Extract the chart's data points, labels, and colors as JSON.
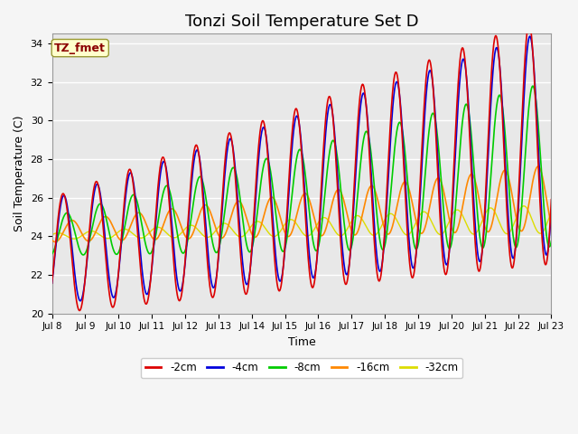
{
  "title": "Tonzi Soil Temperature Set D",
  "xlabel": "Time",
  "ylabel": "Soil Temperature (C)",
  "ylim": [
    20,
    34.5
  ],
  "colors": {
    "-2cm": "#dd0000",
    "-4cm": "#0000dd",
    "-8cm": "#00cc00",
    "-16cm": "#ff8800",
    "-32cm": "#dddd00"
  },
  "legend_labels": [
    "-2cm",
    "-4cm",
    "-8cm",
    "-16cm",
    "-32cm"
  ],
  "annotation_text": "TZ_fmet",
  "annotation_color": "#8b0000",
  "annotation_bg": "#ffffcc",
  "annotation_border": "#999933",
  "bg_color": "#e8e8e8",
  "grid_color": "white",
  "title_fontsize": 13,
  "xtick_labels": [
    "Jul 8",
    "Jul 9",
    "Jul 10",
    "Jul 11",
    "Jul 12",
    "Jul 13",
    "Jul 14",
    "Jul 15",
    "Jul 16",
    "Jul 17",
    "Jul 18",
    "Jul 19",
    "Jul 20",
    "Jul 21",
    "Jul 22",
    "Jul 23"
  ]
}
